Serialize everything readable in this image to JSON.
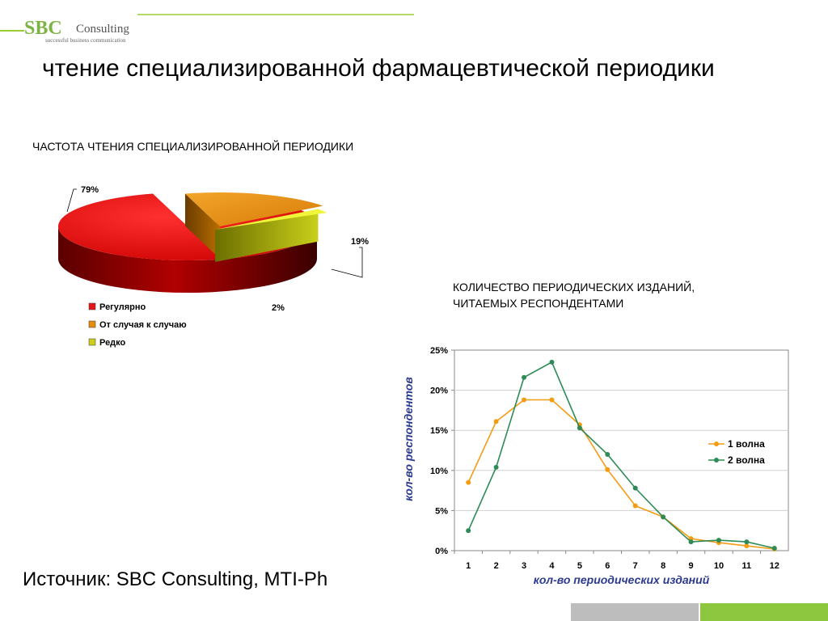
{
  "logo": {
    "mark": "SBC",
    "word": "Consulting",
    "tagline": "successful business communication"
  },
  "title": "чтение специализированной фармацевтической периодики",
  "source": "Источник: SBC Consulting, MTI-Ph",
  "chart_data": [
    {
      "type": "pie",
      "title": "ЧАСТОТА ЧТЕНИЯ СПЕЦИАЛИЗИРОВАННОЙ ПЕРИОДИКИ",
      "categories": [
        "Регулярно",
        "От случая к случаю",
        "Редко"
      ],
      "values": [
        79,
        19,
        2
      ],
      "data_labels": [
        "79%",
        "19%",
        "2%"
      ],
      "colors": [
        "#e4161b",
        "#e58d0e",
        "#c9cf1a"
      ],
      "legend_position": "bottom-left",
      "style": "3d-exploded"
    },
    {
      "type": "line",
      "title_lines": [
        "КОЛИЧЕСТВО ПЕРИОДИЧЕСКИХ ИЗДАНИЙ,",
        "ЧИТАЕМЫХ РЕСПОНДЕНТАМИ"
      ],
      "xlabel": "кол-во периодических изданий",
      "ylabel": "кол-во респондентов",
      "x": [
        1,
        2,
        3,
        4,
        5,
        6,
        7,
        8,
        9,
        10,
        11,
        12
      ],
      "ylim": [
        0,
        25
      ],
      "yticks": [
        "0%",
        "5%",
        "10%",
        "15%",
        "20%",
        "25%"
      ],
      "grid": true,
      "legend_position": "right",
      "series": [
        {
          "name": "1 волна",
          "color": "#f39c12",
          "values": [
            8.5,
            16.1,
            18.8,
            18.8,
            15.7,
            10.1,
            5.6,
            4.2,
            1.5,
            1.0,
            0.6,
            0.2
          ]
        },
        {
          "name": "2 волна",
          "color": "#2e8b57",
          "values": [
            2.5,
            10.4,
            21.6,
            23.5,
            15.3,
            12.0,
            7.8,
            4.2,
            1.1,
            1.3,
            1.1,
            0.3
          ]
        }
      ]
    }
  ]
}
